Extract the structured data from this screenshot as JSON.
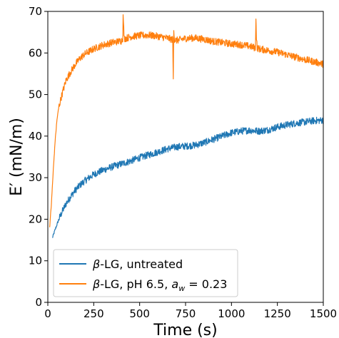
{
  "chart_data": {
    "type": "line",
    "xlabel": "Time (s)",
    "ylabel": "E′ (mN/m)",
    "xlim": [
      0,
      1500
    ],
    "ylim": [
      0,
      70
    ],
    "xticks": [
      0,
      250,
      500,
      750,
      1000,
      1250,
      1500
    ],
    "yticks": [
      0,
      10,
      20,
      30,
      40,
      50,
      60,
      70
    ],
    "grid": false,
    "legend_position": "lower-left",
    "series": [
      {
        "name": "β-LG, untreated",
        "color": "#1f77b4",
        "x": [
          25,
          40,
          60,
          80,
          100,
          125,
          150,
          175,
          200,
          250,
          300,
          350,
          400,
          450,
          500,
          550,
          600,
          650,
          700,
          750,
          800,
          850,
          900,
          950,
          1000,
          1050,
          1100,
          1150,
          1200,
          1250,
          1300,
          1350,
          1400,
          1450,
          1500
        ],
        "values": [
          15.5,
          17.5,
          20,
          22,
          23.8,
          25.5,
          27,
          28.2,
          29.2,
          30.8,
          31.8,
          32.6,
          33.3,
          34,
          34.8,
          35.5,
          36.2,
          36.9,
          37.4,
          37.6,
          37.8,
          38.4,
          39.2,
          40.0,
          40.8,
          41.2,
          41.4,
          41.2,
          41.5,
          42.2,
          42.7,
          43.1,
          43.4,
          43.7,
          43.8
        ]
      },
      {
        "name": "β-LG, pH 6.5, a_w = 0.23",
        "color": "#ff7f0e",
        "x": [
          10,
          20,
          30,
          40,
          50,
          60,
          80,
          100,
          125,
          150,
          175,
          200,
          250,
          300,
          350,
          400,
          408,
          410,
          412,
          416,
          450,
          500,
          550,
          600,
          650,
          680,
          683,
          686,
          690,
          700,
          750,
          800,
          850,
          900,
          950,
          1000,
          1050,
          1100,
          1130,
          1133,
          1136,
          1140,
          1150,
          1200,
          1250,
          1300,
          1350,
          1400,
          1450,
          1500
        ],
        "values": [
          18,
          24,
          32,
          39,
          44,
          47,
          50.5,
          53.5,
          55.5,
          57.3,
          58.7,
          59.7,
          61,
          61.9,
          62.5,
          62.9,
          63.5,
          70,
          67,
          63.4,
          63.9,
          64.2,
          64.3,
          64,
          63.6,
          63.2,
          53.3,
          65.8,
          63.2,
          63,
          63.5,
          63.6,
          63.3,
          62.8,
          62.5,
          62.2,
          62,
          61.6,
          61.2,
          68.5,
          64,
          61.2,
          61,
          60.6,
          60.2,
          59.6,
          59,
          58.4,
          57.9,
          57.3
        ]
      }
    ],
    "legend": {
      "entries": [
        {
          "prefix": "β",
          "text": "-LG, untreated",
          "color": "#1f77b4"
        },
        {
          "prefix": "β",
          "text": "-LG, pH 6.5, ",
          "math_var": "a",
          "math_sub": "w",
          "math_rhs": " = 0.23",
          "color": "#ff7f0e"
        }
      ]
    }
  }
}
